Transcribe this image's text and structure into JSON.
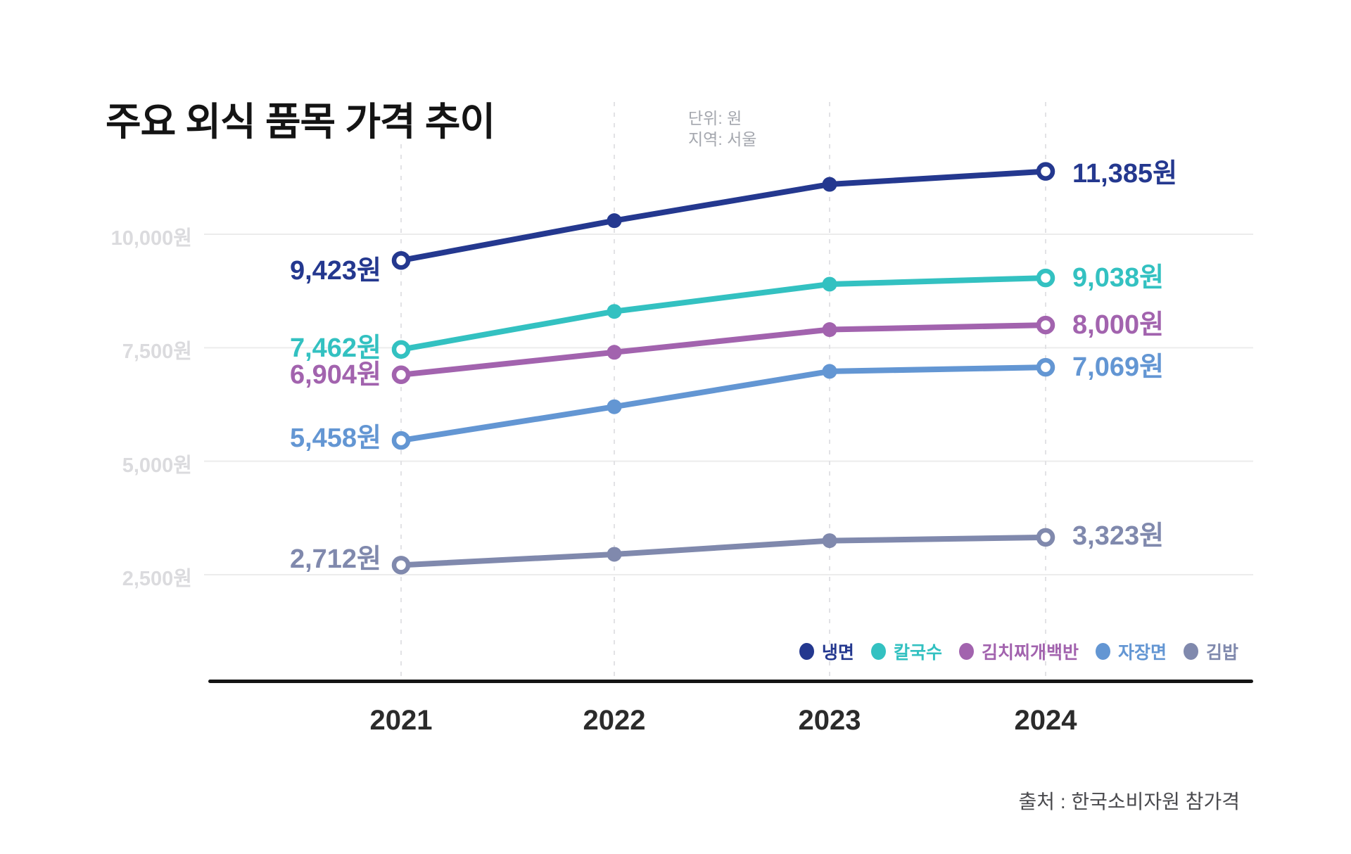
{
  "title": "주요 외식 품목 가격 추이",
  "subtitle": {
    "line1": "단위: 원",
    "line2": "지역: 서울"
  },
  "source": "출처 : 한국소비자원 참가격",
  "chart_data": {
    "type": "line",
    "title": "주요 외식 품목 가격 추이",
    "unit_label": "단위: 원",
    "region_label": "지역: 서울",
    "categories": [
      "2021",
      "2022",
      "2023",
      "2024"
    ],
    "y_axis": {
      "tick_values": [
        10000,
        7500,
        5000,
        2500
      ],
      "tick_labels": [
        "10,000원",
        "7,500원",
        "5,000원",
        "2,500원"
      ],
      "range_shown": [
        2500,
        11500
      ]
    },
    "grid": {
      "horizontal": true,
      "vertical": "dashed"
    },
    "legend_position": "bottom-right",
    "legend_labels": [
      "냉면",
      "칼국수",
      "김치찌개백반",
      "자장면",
      "김밥"
    ],
    "series": [
      {
        "key": "naengmyeon",
        "name": "냉면",
        "color": "#24388F",
        "values": [
          9423,
          10300,
          11100,
          11385
        ],
        "start_label": "9,423원",
        "end_label": "11,385원"
      },
      {
        "key": "kalguksu",
        "name": "칼국수",
        "color": "#33C1C1",
        "values": [
          7462,
          8300,
          8900,
          9038
        ],
        "start_label": "7,462원",
        "end_label": "9,038원"
      },
      {
        "key": "kimchi-jjigae-baekban",
        "name": "김치찌개백반",
        "color": "#A263AE",
        "values": [
          6904,
          7400,
          7900,
          8000
        ],
        "start_label": "6,904원",
        "end_label": "8,000원"
      },
      {
        "key": "jajangmyeon",
        "name": "자장면",
        "color": "#6396D3",
        "values": [
          5458,
          6200,
          6980,
          7069
        ],
        "start_label": "5,458원",
        "end_label": "7,069원"
      },
      {
        "key": "gimbap",
        "name": "김밥",
        "color": "#8089AD",
        "values": [
          2712,
          2950,
          3250,
          3323
        ],
        "start_label": "2,712원",
        "end_label": "3,323원"
      }
    ]
  }
}
